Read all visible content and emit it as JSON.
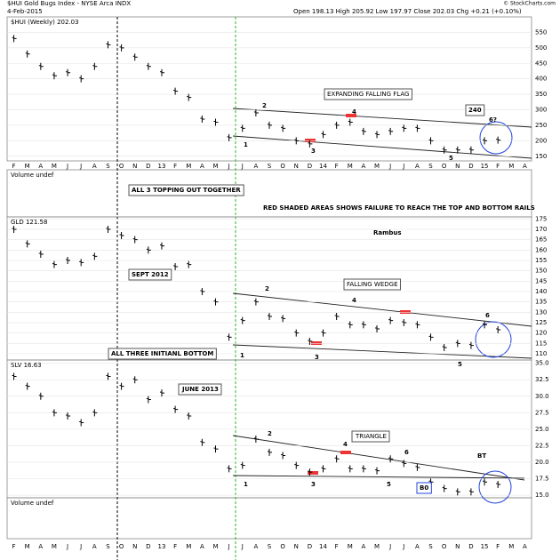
{
  "header": {
    "title": "$HUI Gold Bugs Index - NYSE Arca INDX",
    "date": "4-Feb-2015",
    "quote": "Open 198.13  High 205.92  Low 197.97  Close 202.03  Chg +0.21 (+0.10%)",
    "credit": "© StockCharts.com"
  },
  "volume_labels": [
    "Volume undef",
    "Volume undef"
  ],
  "panel_notes": [
    "ALL 3 TOPPING OUT TOGETHER",
    "RED SHADED AREAS SHOWS FAILURE TO REACH THE TOP AND BOTTOM RAILS"
  ],
  "chart_data": [
    {
      "type": "ohlc",
      "title": "$HUI (Weekly) 202.03",
      "color": "#000000",
      "grid": true,
      "categories": [
        "F",
        "M",
        "A",
        "M",
        "J",
        "J",
        "A",
        "S",
        "O",
        "N",
        "D",
        "13",
        "F",
        "M",
        "A",
        "M",
        "J",
        "J",
        "A",
        "S",
        "O",
        "N",
        "D",
        "14",
        "F",
        "M",
        "A",
        "M",
        "J",
        "J",
        "A",
        "S",
        "O",
        "N",
        "D",
        "15",
        "F",
        "M",
        "A"
      ],
      "values": [
        530,
        480,
        440,
        410,
        420,
        400,
        440,
        510,
        500,
        470,
        440,
        420,
        360,
        340,
        270,
        260,
        210,
        240,
        290,
        250,
        240,
        200,
        190,
        220,
        250,
        260,
        230,
        220,
        230,
        240,
        240,
        200,
        170,
        170,
        170,
        200,
        202.03,
        null,
        null
      ],
      "ylim": [
        135,
        600
      ],
      "yticks": [
        150,
        200,
        250,
        300,
        350,
        400,
        450,
        500,
        550
      ],
      "annotations": [
        "EXPANDING FALLING FLAG",
        "240",
        "6?",
        "1",
        "2",
        "3",
        "4",
        "5"
      ]
    },
    {
      "type": "ohlc",
      "title": "GLD 121.58",
      "color": "#000000",
      "grid": true,
      "values": [
        170,
        163,
        158,
        153,
        155,
        154,
        157,
        170,
        167,
        165,
        160,
        162,
        152,
        153,
        140,
        135,
        118,
        126,
        135,
        128,
        127,
        120,
        116,
        120,
        128,
        124,
        124,
        122,
        126,
        125,
        124,
        118,
        113,
        115,
        114,
        124,
        121.58,
        null,
        null
      ],
      "ylim": [
        107,
        176
      ],
      "yticks": [
        110,
        115,
        120,
        125,
        130,
        135,
        140,
        145,
        150,
        155,
        160,
        165,
        170,
        175
      ],
      "annotations": [
        "Rambus",
        "SEPT 2012",
        "FALLING WEDGE",
        "ALL THREE INITIANL BOTTOM",
        "1",
        "2",
        "3",
        "4",
        "5",
        "6"
      ]
    },
    {
      "type": "ohlc",
      "title": "SLV 16.63",
      "color": "#000000",
      "grid": true,
      "categories": [
        "F",
        "M",
        "A",
        "M",
        "J",
        "J",
        "A",
        "S",
        "O",
        "N",
        "D",
        "13",
        "F",
        "M",
        "A",
        "M",
        "J",
        "J",
        "A",
        "S",
        "O",
        "N",
        "D",
        "14",
        "F",
        "M",
        "A",
        "M",
        "J",
        "J",
        "A",
        "S",
        "O",
        "N",
        "D",
        "15",
        "F",
        "M",
        "A"
      ],
      "values": [
        33,
        31.5,
        30,
        27.5,
        27,
        26,
        27.5,
        33,
        31.5,
        32.5,
        29.5,
        30.5,
        28,
        27,
        23,
        22,
        19,
        19.5,
        23.5,
        21.5,
        21,
        19.5,
        18.5,
        19,
        20.5,
        19,
        19,
        18.7,
        20.5,
        19.8,
        19.2,
        17,
        16,
        15.5,
        15.5,
        17,
        16.63,
        null,
        null
      ],
      "ylim": [
        14.6,
        35.5
      ],
      "yticks": [
        {
          "value": 15,
          "label": "15.0"
        },
        {
          "value": 17.5,
          "label": "17.5"
        },
        {
          "value": 20,
          "label": "20.0"
        },
        {
          "value": 22.5,
          "label": "22.5"
        },
        {
          "value": 25,
          "label": "25.0"
        },
        {
          "value": 27.5,
          "label": "27.5"
        },
        {
          "value": 30,
          "label": "30.0"
        },
        {
          "value": 32.5,
          "label": "32.5"
        },
        {
          "value": 35,
          "label": "35.0"
        }
      ],
      "annotations": [
        "JUNE 2013",
        "TRIANGLE",
        "B0",
        "BT",
        "1",
        "2",
        "3",
        "4",
        "5",
        "6"
      ]
    }
  ]
}
